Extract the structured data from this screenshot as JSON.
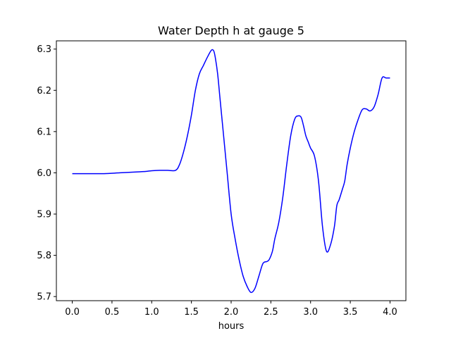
{
  "chart_data": {
    "type": "line",
    "title": "Water Depth h at gauge 5",
    "xlabel": "hours",
    "ylabel": "",
    "xlim": [
      -0.2,
      4.2
    ],
    "ylim": [
      5.69,
      6.32
    ],
    "xticks": [
      0.0,
      0.5,
      1.0,
      1.5,
      2.0,
      2.5,
      3.0,
      3.5,
      4.0
    ],
    "xtick_labels": [
      "0.0",
      "0.5",
      "1.0",
      "1.5",
      "2.0",
      "2.5",
      "3.0",
      "3.5",
      "4.0"
    ],
    "yticks": [
      5.7,
      5.8,
      5.9,
      6.0,
      6.1,
      6.2,
      6.3
    ],
    "ytick_labels": [
      "5.7",
      "5.8",
      "5.9",
      "6.0",
      "6.1",
      "6.2",
      "6.3"
    ],
    "grid": false,
    "line_color": "#0000ff",
    "series": [
      {
        "x": [
          0.0,
          0.2,
          0.4,
          0.6,
          0.8,
          0.9,
          1.0,
          1.1,
          1.2,
          1.3,
          1.35,
          1.4,
          1.45,
          1.5,
          1.55,
          1.6,
          1.65,
          1.7,
          1.75,
          1.78,
          1.8,
          1.83,
          1.86,
          1.9,
          1.95,
          2.0,
          2.05,
          2.1,
          2.15,
          2.2,
          2.25,
          2.3,
          2.35,
          2.4,
          2.45,
          2.48,
          2.52,
          2.55,
          2.6,
          2.65,
          2.7,
          2.75,
          2.8,
          2.84,
          2.88,
          2.91,
          2.94,
          2.97,
          3.0,
          3.05,
          3.1,
          3.15,
          3.2,
          3.25,
          3.3,
          3.33,
          3.36,
          3.4,
          3.43,
          3.46,
          3.5,
          3.55,
          3.6,
          3.65,
          3.7,
          3.75,
          3.8,
          3.85,
          3.9,
          3.95,
          4.0
        ],
        "values": [
          5.998,
          5.998,
          5.998,
          6.0,
          6.002,
          6.003,
          6.005,
          6.006,
          6.006,
          6.006,
          6.02,
          6.05,
          6.09,
          6.14,
          6.2,
          6.24,
          6.26,
          6.28,
          6.297,
          6.296,
          6.28,
          6.24,
          6.18,
          6.1,
          6.0,
          5.9,
          5.84,
          5.79,
          5.75,
          5.725,
          5.71,
          5.72,
          5.75,
          5.78,
          5.785,
          5.79,
          5.81,
          5.84,
          5.88,
          5.94,
          6.02,
          6.09,
          6.13,
          6.138,
          6.135,
          6.115,
          6.09,
          6.075,
          6.06,
          6.04,
          5.98,
          5.87,
          5.81,
          5.825,
          5.87,
          5.92,
          5.935,
          5.96,
          5.98,
          6.02,
          6.06,
          6.1,
          6.13,
          6.153,
          6.155,
          6.15,
          6.16,
          6.19,
          6.23,
          6.23,
          6.23
        ]
      }
    ]
  }
}
